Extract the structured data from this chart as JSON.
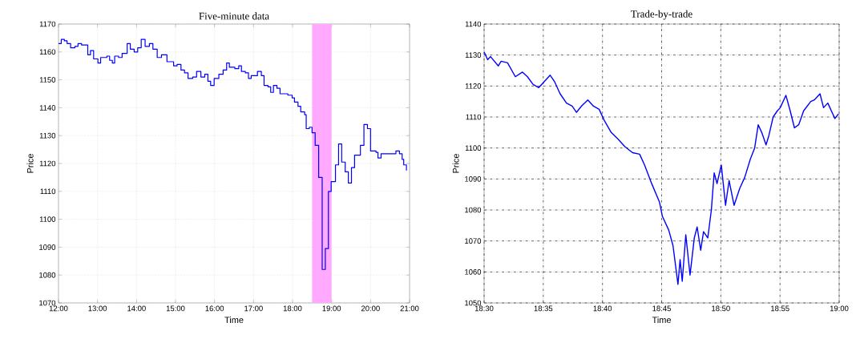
{
  "chart_data": [
    {
      "type": "step",
      "title": "Five-minute data",
      "xlabel": "Time",
      "ylabel": "Price",
      "xlim": [
        12,
        21
      ],
      "ylim": [
        1070,
        1170
      ],
      "xticks": [
        {
          "value": 12,
          "label": "12:00"
        },
        {
          "value": 13,
          "label": "13:00"
        },
        {
          "value": 14,
          "label": "14:00"
        },
        {
          "value": 15,
          "label": "15:00"
        },
        {
          "value": 16,
          "label": "16:00"
        },
        {
          "value": 17,
          "label": "17:00"
        },
        {
          "value": 18,
          "label": "18:00"
        },
        {
          "value": 19,
          "label": "19:00"
        },
        {
          "value": 20,
          "label": "20:00"
        },
        {
          "value": 21,
          "label": "21:00"
        }
      ],
      "yticks": [
        1070,
        1080,
        1090,
        1100,
        1110,
        1120,
        1130,
        1140,
        1150,
        1160,
        1170
      ],
      "grid": true,
      "bands": [
        {
          "axis": "x",
          "from": 18.5,
          "to": 19.0,
          "color": "#ffaaff"
        }
      ],
      "series": [
        {
          "color": "#0000ff",
          "x": [
            12.0,
            12.07,
            12.15,
            12.22,
            12.31,
            12.42,
            12.5,
            12.59,
            12.75,
            12.82,
            12.9,
            13.01,
            13.08,
            13.24,
            13.31,
            13.38,
            13.44,
            13.54,
            13.63,
            13.76,
            13.84,
            13.94,
            14.03,
            14.12,
            14.22,
            14.33,
            14.42,
            14.53,
            14.64,
            14.78,
            14.95,
            15.04,
            15.14,
            15.23,
            15.32,
            15.44,
            15.54,
            15.65,
            15.75,
            15.83,
            15.9,
            15.99,
            16.11,
            16.22,
            16.31,
            16.38,
            16.52,
            16.62,
            16.69,
            16.79,
            16.87,
            16.94,
            17.1,
            17.2,
            17.27,
            17.37,
            17.44,
            17.51,
            17.6,
            17.68,
            17.88,
            17.99,
            18.05,
            18.14,
            18.21,
            18.31,
            18.35,
            18.43,
            18.5,
            18.58,
            18.67,
            18.76,
            18.84,
            18.92,
            18.99,
            19.1,
            19.18,
            19.26,
            19.35,
            19.43,
            19.51,
            19.59,
            19.74,
            19.83,
            19.92,
            20.0,
            20.14,
            20.19,
            20.27,
            20.65,
            20.74,
            20.81,
            20.85,
            20.92
          ],
          "values": [
            1163,
            1164.5,
            1164,
            1163,
            1161.5,
            1162,
            1163,
            1162.5,
            1159,
            1160.5,
            1157.5,
            1156,
            1158,
            1158.5,
            1157,
            1156,
            1158.5,
            1158,
            1159.5,
            1163,
            1161,
            1160,
            1161.5,
            1164.5,
            1162,
            1163,
            1161,
            1158,
            1159,
            1156.5,
            1155,
            1155.5,
            1153.5,
            1152.5,
            1150.5,
            1151,
            1153,
            1151,
            1152,
            1149.5,
            1148,
            1150.5,
            1152,
            1153.5,
            1156,
            1154.5,
            1154,
            1155,
            1153,
            1152.5,
            1150.5,
            1151.5,
            1153,
            1151.5,
            1148,
            1147.5,
            1145.5,
            1148,
            1147,
            1145,
            1144.5,
            1143.5,
            1142,
            1140.5,
            1138.5,
            1137.5,
            1132.5,
            1133,
            1131,
            1126.5,
            1115,
            1082,
            1089.5,
            1110,
            1113.5,
            1119.5,
            1127,
            1120.5,
            1117,
            1113,
            1118.5,
            1123,
            1126.5,
            1134,
            1132.5,
            1124.5,
            1124,
            1122,
            1123.5,
            1124.5,
            1123.5,
            1121.5,
            1119.5,
            1117.5
          ]
        }
      ]
    },
    {
      "type": "line",
      "title": "Trade-by-trade",
      "xlabel": "Time",
      "ylabel": "Price",
      "xlim": [
        18.5,
        19.0
      ],
      "ylim": [
        1050,
        1140
      ],
      "xticks": [
        {
          "value": 18.5,
          "label": "18:30"
        },
        {
          "value": 18.5833,
          "label": "18:35"
        },
        {
          "value": 18.6667,
          "label": "18:40"
        },
        {
          "value": 18.75,
          "label": "18:45"
        },
        {
          "value": 18.8333,
          "label": "18:50"
        },
        {
          "value": 18.9167,
          "label": "18:55"
        },
        {
          "value": 19.0,
          "label": "19:00"
        }
      ],
      "yticks": [
        1050,
        1060,
        1070,
        1080,
        1090,
        1100,
        1110,
        1120,
        1130,
        1140
      ],
      "grid": true,
      "series": [
        {
          "color": "#0000ff",
          "x": [
            18.5,
            18.505,
            18.509,
            18.52,
            18.524,
            18.533,
            18.544,
            18.554,
            18.561,
            18.569,
            18.577,
            18.583,
            18.593,
            18.599,
            18.607,
            18.616,
            18.624,
            18.63,
            18.637,
            18.646,
            18.654,
            18.662,
            18.669,
            18.679,
            18.688,
            18.698,
            18.709,
            18.719,
            18.726,
            18.736,
            18.747,
            18.751,
            18.76,
            18.766,
            18.773,
            18.776,
            18.779,
            18.784,
            18.79,
            18.796,
            18.8,
            18.805,
            18.809,
            18.815,
            18.82,
            18.824,
            18.828,
            18.834,
            18.84,
            18.845,
            18.852,
            18.86,
            18.867,
            18.875,
            18.881,
            18.886,
            18.891,
            18.897,
            18.901,
            18.907,
            18.913,
            18.917,
            18.925,
            18.931,
            18.937,
            18.943,
            18.95,
            18.96,
            18.965,
            18.973,
            18.978,
            18.984,
            18.994,
            18.999
          ],
          "values": [
            1131,
            1128.5,
            1129.5,
            1126.5,
            1128,
            1127.5,
            1123,
            1124.5,
            1123,
            1120.5,
            1119.5,
            1121,
            1123.5,
            1121.5,
            1117.5,
            1114.5,
            1113.5,
            1111.5,
            1113.5,
            1115.5,
            1113.5,
            1112.5,
            1109,
            1105,
            1103,
            1100.5,
            1098.5,
            1098,
            1094.5,
            1088.5,
            1082.5,
            1078,
            1073.5,
            1068.5,
            1056,
            1064,
            1057,
            1072,
            1059,
            1071,
            1074.5,
            1067,
            1073,
            1071,
            1080,
            1092,
            1088.5,
            1094.5,
            1081.5,
            1089.5,
            1081.5,
            1087,
            1090.5,
            1096.5,
            1100,
            1107.5,
            1105,
            1101,
            1104,
            1110,
            1112,
            1113,
            1117,
            1112,
            1106.5,
            1107.5,
            1112,
            1115,
            1115.5,
            1117.5,
            1113,
            1114.5,
            1109.5,
            1111
          ]
        }
      ]
    }
  ]
}
